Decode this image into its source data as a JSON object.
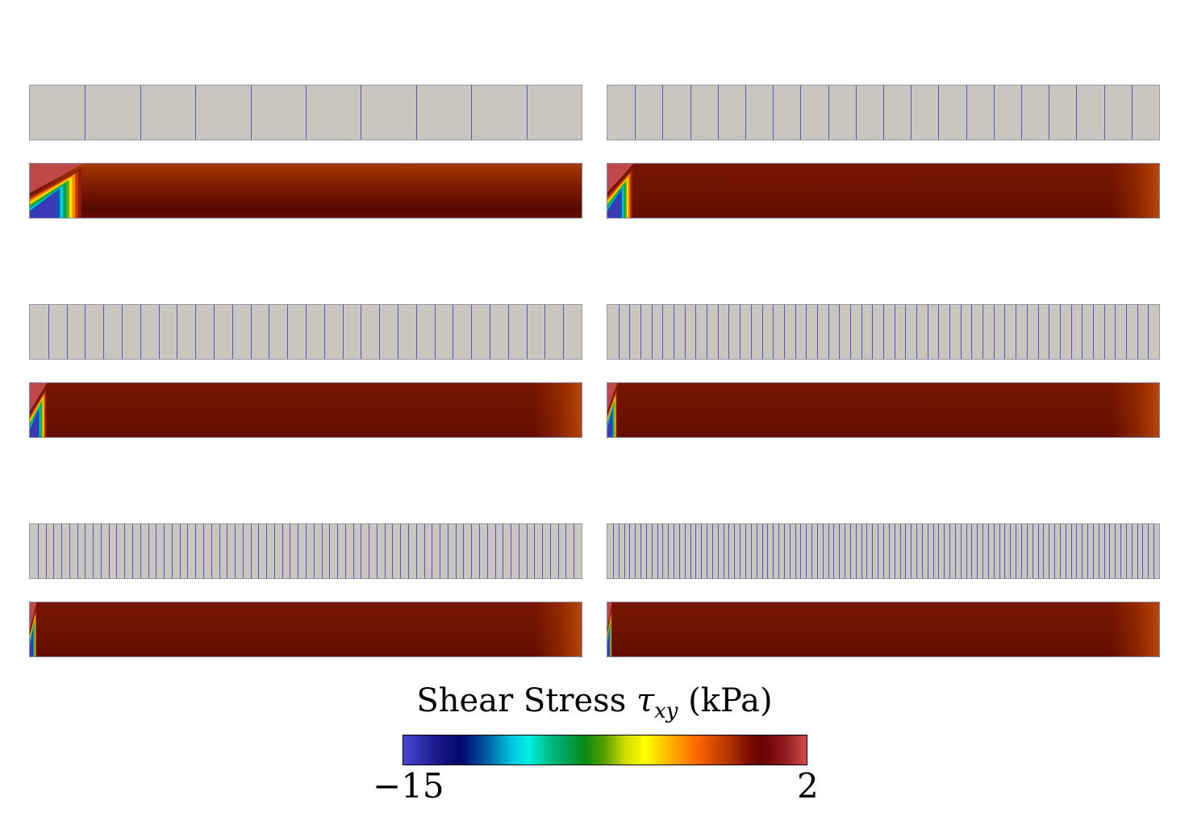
{
  "colorbar": {
    "title_text": "Shear Stress",
    "title_symbol": "τ",
    "title_subscript": "xy",
    "title_unit": "(kPa)",
    "min_label": "−15",
    "max_label": "2",
    "colormap": "jet-like (blue → cyan → green → yellow → orange → dark red → light red)"
  },
  "panels": [
    {
      "name": "panel-1",
      "elements": 10
    },
    {
      "name": "panel-2",
      "elements": 20
    },
    {
      "name": "panel-3",
      "elements": 30
    },
    {
      "name": "panel-4",
      "elements": 50
    },
    {
      "name": "panel-5",
      "elements": 70
    },
    {
      "name": "panel-6",
      "elements": 100
    }
  ],
  "colors": {
    "mesh_fill": "#c8c6bf",
    "mesh_line": "#5a56b8",
    "field_base": "#6e1300",
    "concentration_blue": "#3a3ab8",
    "concentration_red": "#c04848"
  }
}
